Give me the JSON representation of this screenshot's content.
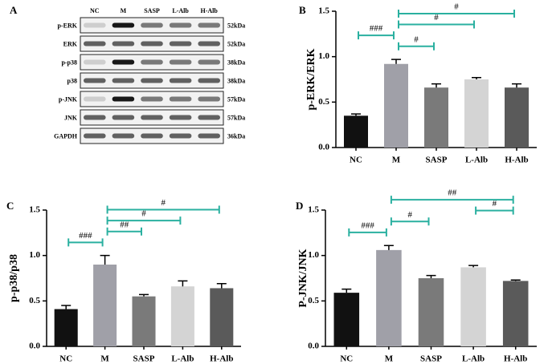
{
  "blot": {
    "label": "A",
    "lanes": [
      "NC",
      "M",
      "SASP",
      "L-Alb",
      "H-Alb"
    ],
    "rows": [
      {
        "name": "p-ERK",
        "size": "52kDa"
      },
      {
        "name": "ERK",
        "size": "52kDa"
      },
      {
        "name": "p-p38",
        "size": "38kDa"
      },
      {
        "name": "p38",
        "size": "38kDa"
      },
      {
        "name": "p-JNK",
        "size": "57kDa"
      },
      {
        "name": "JNK",
        "size": "57kDa"
      },
      {
        "name": "GAPDH",
        "size": "36kDa"
      }
    ]
  },
  "chart_data": [
    {
      "type": "bar",
      "label": "B",
      "ylabel": "p-ERK/ERK",
      "categories": [
        "NC",
        "M",
        "SASP",
        "L-Alb",
        "H-Alb"
      ],
      "values": [
        0.35,
        0.92,
        0.66,
        0.75,
        0.66
      ],
      "errors": [
        0.02,
        0.05,
        0.04,
        0.02,
        0.04
      ],
      "colors": [
        "#111111",
        "#a0a0a8",
        "#7a7a7a",
        "#d4d4d4",
        "#5a5a5a"
      ],
      "ylim": [
        0,
        1.5
      ],
      "yticks": [
        {
          "value": 0,
          "label": "0.0"
        },
        {
          "value": 0.5,
          "label": "0.5"
        },
        {
          "value": 1,
          "label": "1.0"
        },
        {
          "value": 1.5,
          "label": "1.5"
        }
      ],
      "annotation_color": "#2ab0a0",
      "annotations": [
        {
          "text": "#",
          "from": "M",
          "to": "SASP"
        },
        {
          "text": "###",
          "from": "NC",
          "to": "M"
        },
        {
          "text": "#",
          "from": "M",
          "to": "L-Alb"
        },
        {
          "text": "#",
          "from": "M",
          "to": "H-Alb"
        }
      ]
    },
    {
      "type": "bar",
      "label": "C",
      "ylabel": "p-p38/p38",
      "categories": [
        "NC",
        "M",
        "SASP",
        "L-Alb",
        "H-Alb"
      ],
      "values": [
        0.41,
        0.9,
        0.55,
        0.66,
        0.64
      ],
      "errors": [
        0.04,
        0.1,
        0.02,
        0.06,
        0.05
      ],
      "colors": [
        "#111111",
        "#a0a0a8",
        "#7a7a7a",
        "#d4d4d4",
        "#5a5a5a"
      ],
      "ylim": [
        0,
        1.5
      ],
      "yticks": [
        {
          "value": 0,
          "label": "0.0"
        },
        {
          "value": 0.5,
          "label": "0.5"
        },
        {
          "value": 1,
          "label": "1.0"
        },
        {
          "value": 1.5,
          "label": "1.5"
        }
      ],
      "annotation_color": "#2ab0a0",
      "annotations": [
        {
          "text": "###",
          "from": "NC",
          "to": "M"
        },
        {
          "text": "##",
          "from": "M",
          "to": "SASP"
        },
        {
          "text": "#",
          "from": "M",
          "to": "L-Alb"
        },
        {
          "text": "#",
          "from": "M",
          "to": "H-Alb"
        }
      ]
    },
    {
      "type": "bar",
      "label": "D",
      "ylabel": "P-JNK/JNK",
      "categories": [
        "NC",
        "M",
        "SASP",
        "L-Alb",
        "H-Alb"
      ],
      "values": [
        0.59,
        1.06,
        0.75,
        0.87,
        0.72
      ],
      "errors": [
        0.04,
        0.05,
        0.03,
        0.02,
        0.01
      ],
      "colors": [
        "#111111",
        "#a0a0a8",
        "#7a7a7a",
        "#d4d4d4",
        "#5a5a5a"
      ],
      "ylim": [
        0,
        1.5
      ],
      "yticks": [
        {
          "value": 0,
          "label": "0.0"
        },
        {
          "value": 0.5,
          "label": "0.5"
        },
        {
          "value": 1,
          "label": "1.0"
        },
        {
          "value": 1.5,
          "label": "1.5"
        }
      ],
      "annotation_color": "#2ab0a0",
      "annotations": [
        {
          "text": "###",
          "from": "NC",
          "to": "M"
        },
        {
          "text": "#",
          "from": "M",
          "to": "SASP"
        },
        {
          "text": "#",
          "from": "L-Alb",
          "to": "H-Alb"
        },
        {
          "text": "##",
          "from": "M",
          "to": "H-Alb"
        }
      ]
    }
  ]
}
